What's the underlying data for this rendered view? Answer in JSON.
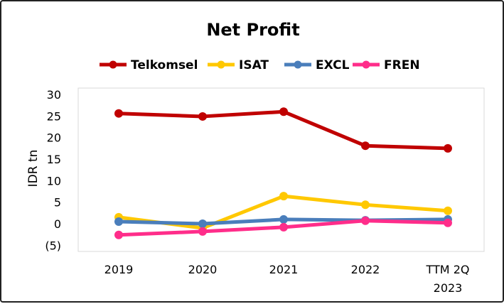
{
  "chart_data": {
    "type": "line",
    "title": "Net Profit",
    "ylabel": "IDR tn",
    "xlabel": "",
    "categories": [
      "2019",
      "2020",
      "2021",
      "2022",
      "TTM 2Q 2023"
    ],
    "category_lines": [
      [
        "2019"
      ],
      [
        "2020"
      ],
      [
        "2021"
      ],
      [
        "2022"
      ],
      [
        "TTM 2Q",
        "2023"
      ]
    ],
    "ylim": [
      -5,
      30
    ],
    "yticks": [
      30,
      25,
      20,
      15,
      10,
      5,
      0,
      -5
    ],
    "ytick_labels": [
      "30",
      "25",
      "20",
      "15",
      "10",
      "5",
      "0",
      "(5)"
    ],
    "grid": false,
    "legend": "top-center",
    "series": [
      {
        "name": "Telkomsel",
        "color": "#C00000",
        "values": [
          25.6,
          24.9,
          26.0,
          18.1,
          17.5
        ]
      },
      {
        "name": "ISAT",
        "color": "#FFC800",
        "values": [
          1.5,
          -1.0,
          6.4,
          4.4,
          3.0
        ]
      },
      {
        "name": "EXCL",
        "color": "#4A7EBB",
        "values": [
          0.5,
          0.0,
          1.0,
          0.8,
          1.0
        ]
      },
      {
        "name": "FREN",
        "color": "#FF2D8A",
        "values": [
          -2.6,
          -1.8,
          -0.8,
          0.7,
          0.2
        ]
      }
    ]
  }
}
